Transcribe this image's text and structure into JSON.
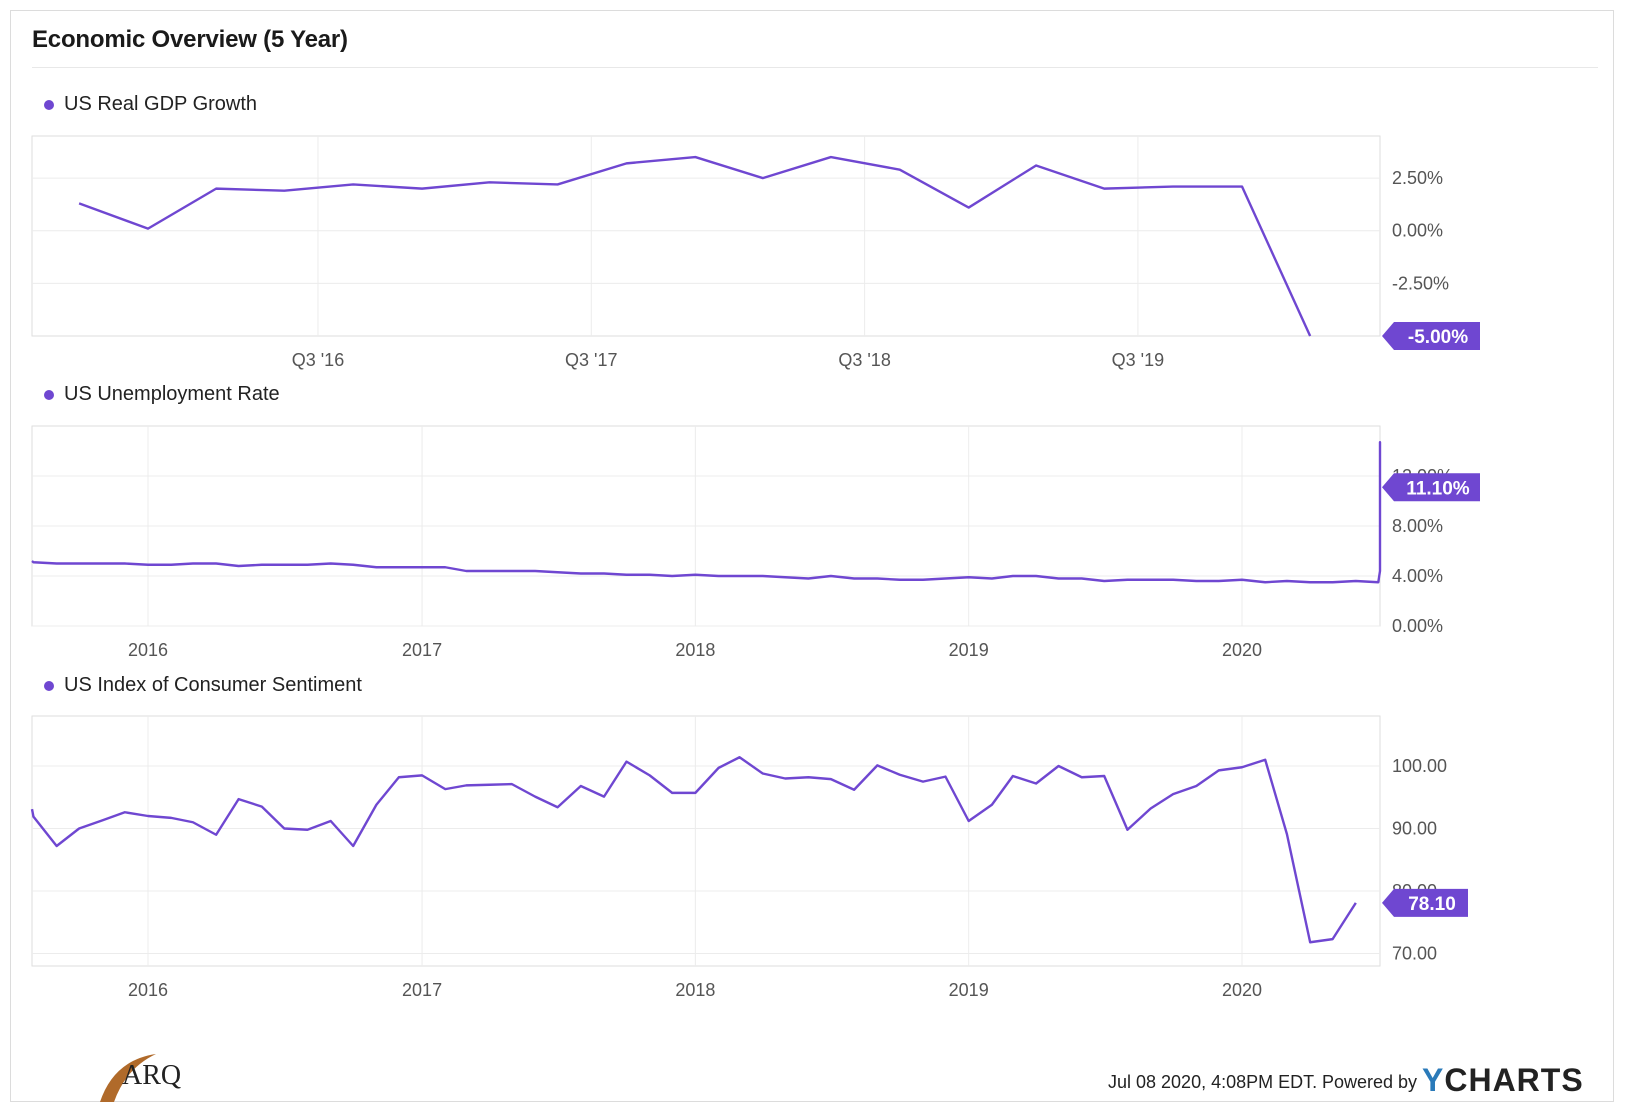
{
  "title": "Economic Overview (5 Year)",
  "accent": "#6f47d1",
  "footer": {
    "timestamp": "Jul 08 2020, 4:08PM EDT.",
    "powered_by": "Powered by",
    "brand": "CHARTS",
    "brand_prefix": "Y",
    "logo": "ARQ"
  },
  "chart_data": [
    {
      "type": "line",
      "series_name": "US Real GDP Growth",
      "x": [
        "2015-10-01",
        "2016-01-01",
        "2016-04-01",
        "2016-07-01",
        "2016-10-01",
        "2017-01-01",
        "2017-04-01",
        "2017-07-01",
        "2017-10-01",
        "2018-01-01",
        "2018-04-01",
        "2018-07-01",
        "2018-10-01",
        "2019-01-01",
        "2019-04-01",
        "2019-07-01",
        "2019-10-01",
        "2020-01-01",
        "2020-04-01"
      ],
      "y": [
        1.3,
        0.1,
        2.0,
        1.9,
        2.2,
        2.0,
        2.3,
        2.2,
        3.2,
        3.5,
        2.5,
        3.5,
        2.9,
        1.1,
        3.1,
        2.0,
        2.1,
        2.1,
        -5.0
      ],
      "yticks": [
        "2.50%",
        "0.00%",
        "-2.50%"
      ],
      "xticks": [
        "Q3 '16",
        "Q3 '17",
        "Q3 '18",
        "Q3 '19"
      ],
      "ylim": [
        -5.0,
        4.5
      ],
      "last_label": "-5.00%",
      "grid": true
    },
    {
      "type": "line",
      "series_name": "US Unemployment Rate",
      "x_start": "2015-07-01",
      "x_step": "monthly",
      "y": [
        5.2,
        5.1,
        5.0,
        5.0,
        5.0,
        5.0,
        4.9,
        4.9,
        5.0,
        5.0,
        4.8,
        4.9,
        4.9,
        4.9,
        5.0,
        4.9,
        4.7,
        4.7,
        4.7,
        4.7,
        4.4,
        4.4,
        4.4,
        4.4,
        4.3,
        4.2,
        4.2,
        4.1,
        4.1,
        4.0,
        4.1,
        4.0,
        4.0,
        4.0,
        3.9,
        3.8,
        4.0,
        3.8,
        3.8,
        3.7,
        3.7,
        3.8,
        3.9,
        3.8,
        4.0,
        4.0,
        3.8,
        3.8,
        3.6,
        3.7,
        3.7,
        3.7,
        3.6,
        3.6,
        3.7,
        3.5,
        3.6,
        3.5,
        3.5,
        3.6,
        3.5,
        4.4,
        14.7,
        13.3,
        11.1
      ],
      "yticks": [
        "12.00%",
        "8.00%",
        "4.00%",
        "0.00%"
      ],
      "xticks": [
        "2016",
        "2017",
        "2018",
        "2019",
        "2020"
      ],
      "ylim": [
        0,
        16
      ],
      "last_label": "11.10%",
      "grid": true
    },
    {
      "type": "line",
      "series_name": "US Index of Consumer Sentiment",
      "x_start": "2015-07-01",
      "x_step": "monthly",
      "y": [
        93.1,
        91.9,
        87.2,
        90.0,
        91.3,
        92.6,
        92.0,
        91.7,
        91.0,
        89.0,
        94.7,
        93.5,
        90.0,
        89.8,
        91.2,
        87.2,
        93.8,
        98.2,
        98.5,
        96.3,
        96.9,
        97.0,
        97.1,
        95.1,
        93.4,
        96.8,
        95.1,
        100.7,
        98.5,
        95.7,
        95.7,
        99.7,
        101.4,
        98.8,
        98.0,
        98.2,
        97.9,
        96.2,
        100.1,
        98.6,
        97.5,
        98.3,
        91.2,
        93.8,
        98.4,
        97.2,
        100.0,
        98.2,
        98.4,
        89.8,
        93.2,
        95.5,
        96.8,
        99.3,
        99.8,
        101.0,
        89.1,
        71.8,
        72.3,
        78.1
      ],
      "yticks": [
        "100.00",
        "90.00",
        "80.00",
        "70.00"
      ],
      "xticks": [
        "2016",
        "2017",
        "2018",
        "2019",
        "2020"
      ],
      "ylim": [
        68,
        108
      ],
      "last_label": "78.10",
      "grid": true
    }
  ]
}
